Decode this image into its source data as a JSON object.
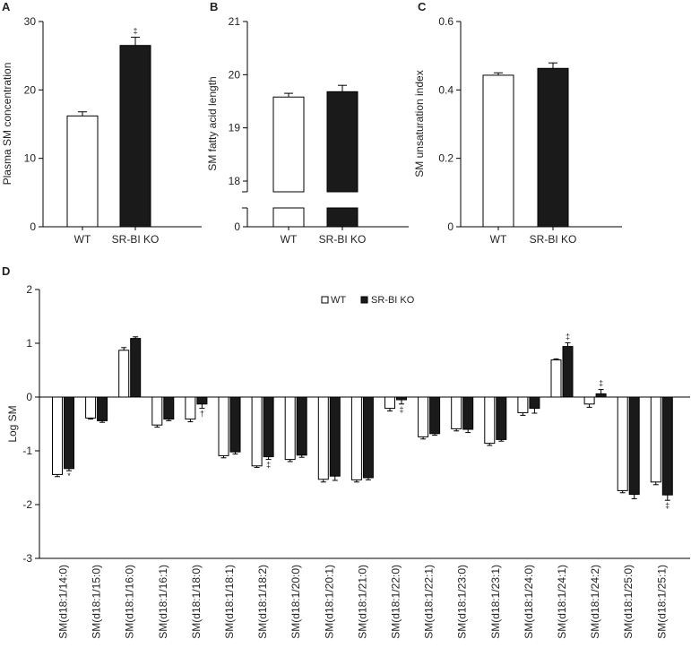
{
  "chart_data": [
    {
      "panel": "A",
      "type": "bar",
      "ylabel": "Plasma SM concentration",
      "ylim": [
        0,
        30
      ],
      "yticks": [
        0,
        10,
        20,
        30
      ],
      "categories": [
        "WT",
        "SR-BI KO"
      ],
      "values": [
        16.2,
        26.5
      ],
      "errors": [
        0.6,
        1.2
      ],
      "annotations": [
        "",
        "‡"
      ]
    },
    {
      "panel": "B",
      "type": "bar",
      "ylabel": "SM fatty acid length",
      "ylim": [
        17.5,
        21
      ],
      "yticks": [
        0,
        18,
        19,
        20,
        21
      ],
      "axis_break": true,
      "categories": [
        "WT",
        "SR-BI KO"
      ],
      "values": [
        19.58,
        19.68
      ],
      "errors": [
        0.07,
        0.12
      ],
      "annotations": [
        "",
        ""
      ]
    },
    {
      "panel": "C",
      "type": "bar",
      "ylabel": "SM unsaturation index",
      "ylim": [
        0,
        0.6
      ],
      "yticks": [
        0,
        0.2,
        0.4,
        0.6
      ],
      "categories": [
        "WT",
        "SR-BI KO"
      ],
      "values": [
        0.443,
        0.463
      ],
      "errors": [
        0.007,
        0.016
      ],
      "annotations": [
        "",
        ""
      ]
    },
    {
      "panel": "D",
      "type": "bar",
      "ylabel": "Log SM",
      "ylim": [
        -3,
        2
      ],
      "yticks": [
        -3,
        -2,
        -1,
        0,
        1,
        2
      ],
      "legend": [
        "WT",
        "SR-BI KO"
      ],
      "categories": [
        "SM(d18:1/14:0)",
        "SM(d18:1/15:0)",
        "SM(d18:1/16:0)",
        "SM(d18:1/16:1)",
        "SM(d18:1/18:0)",
        "SM(d18:1/18:1)",
        "SM(d18:1/18:2)",
        "SM(d18:1/20:0)",
        "SM(d18:1/20:1)",
        "SM(d18:1/21:0)",
        "SM(d18:1/22:0)",
        "SM(d18:1/22:1)",
        "SM(d18:1/23:0)",
        "SM(d18:1/23:1)",
        "SM(d18:1/24:0)",
        "SM(d18:1/24:1)",
        "SM(d18:1/24:2)",
        "SM(d18:1/25:0)",
        "SM(d18:1/25:1)"
      ],
      "series": [
        {
          "name": "WT",
          "values": [
            -1.44,
            -0.39,
            0.87,
            -0.52,
            -0.41,
            -1.09,
            -1.28,
            -1.16,
            -1.53,
            -1.54,
            -0.21,
            -0.74,
            -0.59,
            -0.86,
            -0.29,
            0.69,
            -0.13,
            -1.74,
            -1.58
          ],
          "errors": [
            0.04,
            0.02,
            0.05,
            0.04,
            0.05,
            0.04,
            0.03,
            0.04,
            0.05,
            0.04,
            0.05,
            0.04,
            0.04,
            0.04,
            0.05,
            0.02,
            0.06,
            0.04,
            0.05
          ]
        },
        {
          "name": "SR-BI KO",
          "values": [
            -1.33,
            -0.44,
            1.09,
            -0.41,
            -0.13,
            -1.02,
            -1.11,
            -1.08,
            -1.47,
            -1.5,
            -0.05,
            -0.68,
            -0.6,
            -0.79,
            -0.21,
            0.94,
            0.06,
            -1.81,
            -1.82
          ],
          "errors": [
            0.04,
            0.03,
            0.03,
            0.03,
            0.08,
            0.04,
            0.05,
            0.04,
            0.08,
            0.04,
            0.08,
            0.03,
            0.06,
            0.03,
            0.09,
            0.07,
            0.08,
            0.08,
            0.1
          ]
        }
      ],
      "annotations": [
        "*",
        "",
        "",
        "",
        "†",
        "",
        "‡",
        "",
        "",
        "",
        "‡",
        "",
        "",
        "",
        "",
        "‡",
        "‡",
        "",
        "‡"
      ]
    }
  ]
}
